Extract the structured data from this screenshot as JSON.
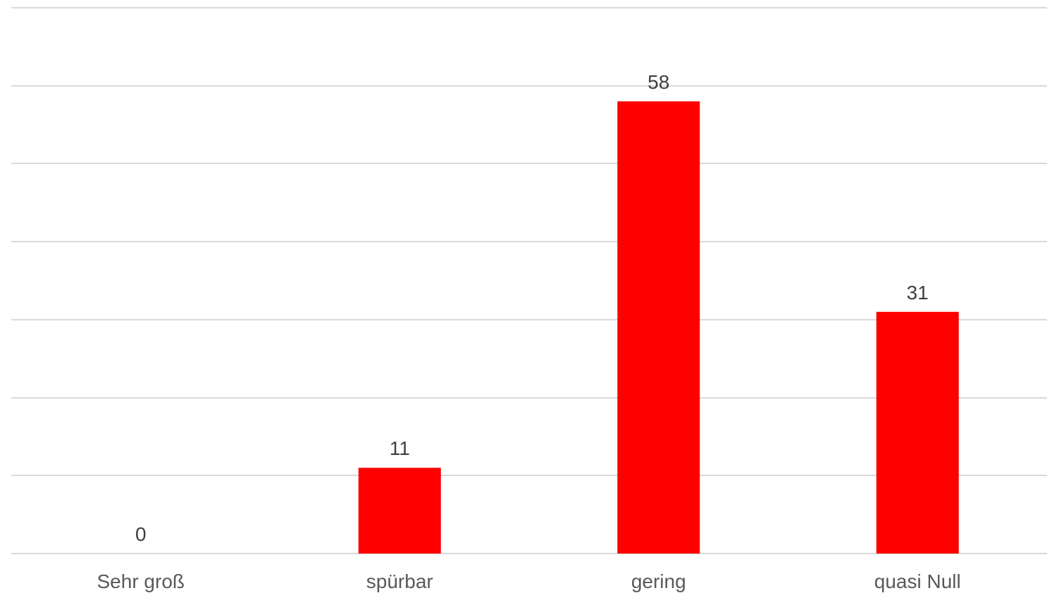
{
  "chart_data": {
    "type": "bar",
    "categories": [
      "Sehr groß",
      "spürbar",
      "gering",
      "quasi Null"
    ],
    "values": [
      0,
      11,
      58,
      31
    ],
    "title": "",
    "xlabel": "",
    "ylabel": "",
    "ylim": [
      0,
      70
    ],
    "grid": true,
    "gridline_step": 10,
    "y_tick_labels_shown": false,
    "data_labels_shown": true,
    "legend": "none",
    "bar_color": "#ff0000",
    "gridline_color": "#d9d9d9",
    "label_color": "#404040",
    "category_label_color": "#595959"
  }
}
